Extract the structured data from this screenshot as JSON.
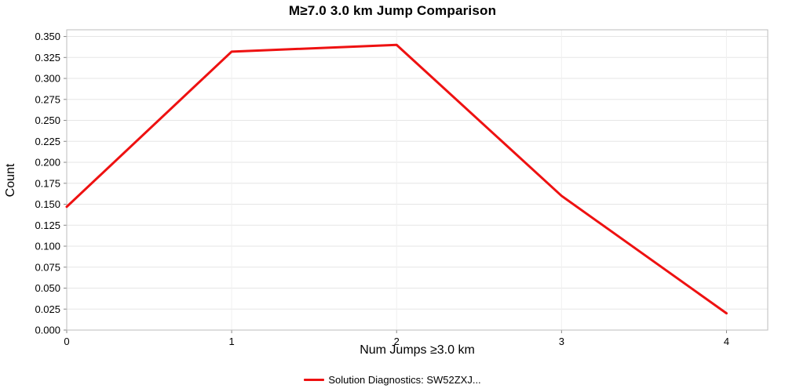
{
  "chart_data": {
    "type": "line",
    "title": "M≥7.0 3.0 km Jump Comparison",
    "xlabel": "Num Jumps ≥3.0 km",
    "ylabel": "Count",
    "x": [
      0,
      1,
      2,
      3,
      4
    ],
    "series": [
      {
        "name": "Solution Diagnostics: SW52ZXJ...",
        "values": [
          0.147,
          0.332,
          0.34,
          0.16,
          0.02
        ],
        "color": "#ee1111"
      }
    ],
    "xlim": [
      0,
      4.25
    ],
    "ylim": [
      0,
      0.358
    ],
    "xticks": [
      0,
      1,
      2,
      3,
      4
    ],
    "ytick_step": 0.025,
    "ytick_max": 0.35,
    "ytick_decimals": 3,
    "grid": true,
    "legend_position": "bottom",
    "background_color": "#ffffff",
    "grid_color": "#e6e6e6",
    "border_color": "#bdbdbd"
  }
}
